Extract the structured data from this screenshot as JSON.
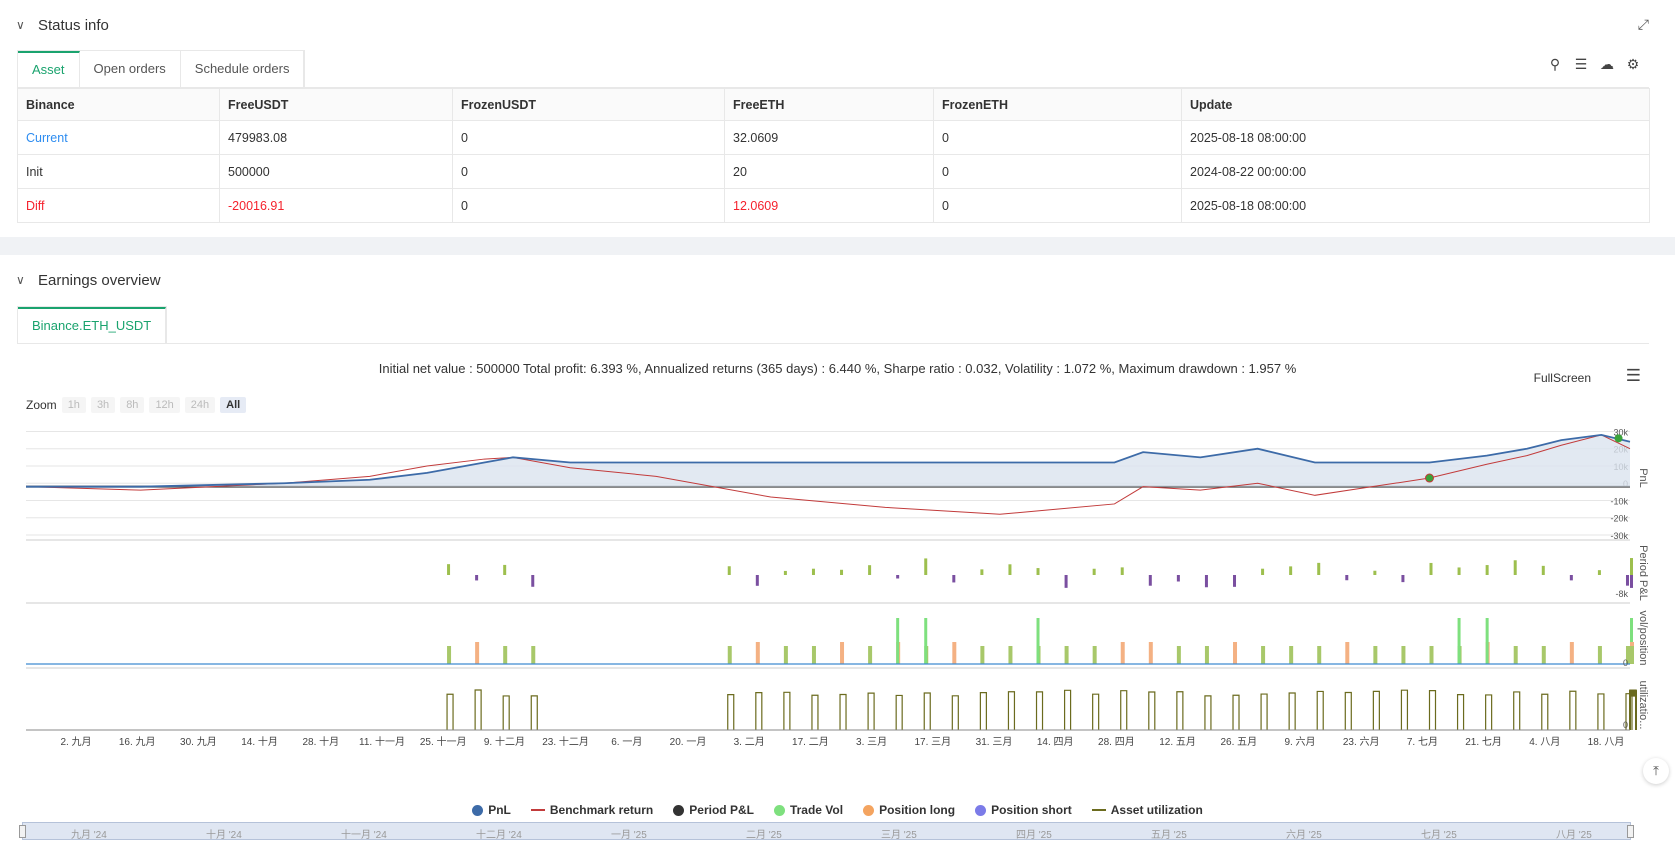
{
  "status": {
    "title": "Status info",
    "tabs": [
      "Asset",
      "Open orders",
      "Schedule orders"
    ],
    "table": {
      "headers": [
        "Binance",
        "FreeUSDT",
        "FrozenUSDT",
        "FreeETH",
        "FrozenETH",
        "Update"
      ],
      "rows": [
        [
          "Current",
          "479983.08",
          "0",
          "32.0609",
          "0",
          "2025-08-18 08:00:00"
        ],
        [
          "Init",
          "500000",
          "0",
          "20",
          "0",
          "2024-08-22 00:00:00"
        ],
        [
          "Diff",
          "-20016.91",
          "0",
          "12.0609",
          "0",
          "2025-08-18 08:00:00"
        ]
      ]
    }
  },
  "earnings": {
    "title": "Earnings overview",
    "tab": "Binance.ETH_USDT",
    "summary": "Initial net value : 500000 Total profit: 6.393 %, Annualized returns (365 days) : 6.440 %, Sharpe ratio : 0.032, Volatility : 1.072 %, Maximum drawdown : 1.957 %",
    "fullscreen_label": "FullScreen",
    "zoom": {
      "label": "Zoom",
      "options": [
        "1h",
        "3h",
        "8h",
        "12h",
        "24h",
        "All"
      ],
      "selected": "All"
    },
    "legend": [
      {
        "label": "PnL",
        "color": "#3d6ba8",
        "kind": "dot"
      },
      {
        "label": "Benchmark return",
        "color": "#c23b3b",
        "kind": "line"
      },
      {
        "label": "Period P&L",
        "color": "#333333",
        "kind": "dot"
      },
      {
        "label": "Trade Vol",
        "color": "#7ee07e",
        "kind": "dot"
      },
      {
        "label": "Position long",
        "color": "#f4a460",
        "kind": "dot"
      },
      {
        "label": "Position short",
        "color": "#7b7be8",
        "kind": "dot"
      },
      {
        "label": "Asset utilization",
        "color": "#6b6b1e",
        "kind": "line"
      }
    ],
    "navigator_labels": [
      "九月 '24",
      "十月 '24",
      "十一月 '24",
      "十二月 '24",
      "一月 '25",
      "二月 '25",
      "三月 '25",
      "四月 '25",
      "五月 '25",
      "六月 '25",
      "七月 '25",
      "八月 '25"
    ]
  },
  "chart_data": {
    "type": "line",
    "x_tick_labels": [
      "2. 九月",
      "16. 九月",
      "30. 九月",
      "14. 十月",
      "28. 十月",
      "11. 十一月",
      "25. 十一月",
      "9. 十二月",
      "23. 十二月",
      "6. 一月",
      "20. 一月",
      "3. 二月",
      "17. 二月",
      "3. 三月",
      "17. 三月",
      "31. 三月",
      "14. 四月",
      "28. 四月",
      "12. 五月",
      "26. 五月",
      "9. 六月",
      "23. 六月",
      "7. 七月",
      "21. 七月",
      "4. 八月",
      "18. 八月"
    ],
    "panes": [
      {
        "name": "PnL",
        "y_tick_labels": [
          "30k",
          "20k",
          "10k",
          "0",
          "-10k",
          "-20k",
          "-30k"
        ],
        "ylim": [
          -30000,
          32000
        ]
      },
      {
        "name": "Period P&L",
        "y_tick_labels": [
          "-8k"
        ]
      },
      {
        "name": "vol/position",
        "y_tick_labels": [
          "0"
        ]
      },
      {
        "name": "utilizatio...",
        "y_tick_labels": [
          "0"
        ]
      }
    ],
    "series": [
      {
        "name": "PnL",
        "points": [
          [
            0,
            0
          ],
          [
            20,
            0
          ],
          [
            45,
            2000
          ],
          [
            60,
            4000
          ],
          [
            70,
            8000
          ],
          [
            80,
            14000
          ],
          [
            85,
            17000
          ],
          [
            95,
            14000
          ],
          [
            105,
            14000
          ],
          [
            190,
            14000
          ],
          [
            195,
            20000
          ],
          [
            205,
            17000
          ],
          [
            215,
            22000
          ],
          [
            225,
            14000
          ],
          [
            235,
            14000
          ],
          [
            245,
            14000
          ],
          [
            255,
            18000
          ],
          [
            262,
            22000
          ],
          [
            268,
            27000
          ],
          [
            275,
            30000
          ],
          [
            280,
            26000
          ]
        ]
      },
      {
        "name": "Benchmark return",
        "points": [
          [
            0,
            0
          ],
          [
            20,
            -2000
          ],
          [
            45,
            2000
          ],
          [
            60,
            6000
          ],
          [
            70,
            12000
          ],
          [
            80,
            16000
          ],
          [
            85,
            17000
          ],
          [
            95,
            11000
          ],
          [
            110,
            6000
          ],
          [
            130,
            -6000
          ],
          [
            150,
            -12000
          ],
          [
            170,
            -16000
          ],
          [
            190,
            -10000
          ],
          [
            195,
            0
          ],
          [
            205,
            -2000
          ],
          [
            215,
            2000
          ],
          [
            225,
            -5000
          ],
          [
            235,
            0
          ],
          [
            245,
            5000
          ],
          [
            255,
            13000
          ],
          [
            262,
            18000
          ],
          [
            268,
            24000
          ],
          [
            275,
            30000
          ],
          [
            280,
            22000
          ]
        ]
      }
    ]
  }
}
